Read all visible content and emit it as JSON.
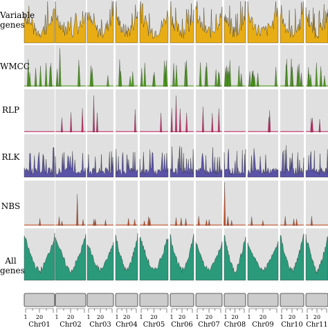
{
  "chart_data": {
    "type": "area",
    "chromosomes": [
      "Chr01",
      "Chr02",
      "Chr03",
      "Chr04",
      "Chr05",
      "Chr06",
      "Chr07",
      "Chr08",
      "Chr09",
      "Chr10",
      "Chr11"
    ],
    "tick_labels": [
      "1",
      "20"
    ],
    "tracks": [
      {
        "label": "Variable\ngenes",
        "color": "#e8ad14",
        "type": "area"
      },
      {
        "label": "WMCC",
        "color": "#4e9a1e",
        "type": "spikes"
      },
      {
        "label": "RLP",
        "color": "#c7306a",
        "type": "spikes"
      },
      {
        "label": "RLK",
        "color": "#5a53a8",
        "type": "area"
      },
      {
        "label": "NBS",
        "color": "#c4522a",
        "type": "spikes"
      },
      {
        "label": "All\ngenes",
        "color": "#2a9a7b",
        "type": "area"
      }
    ],
    "panel_background": "#e0e0e0",
    "grid": false
  }
}
